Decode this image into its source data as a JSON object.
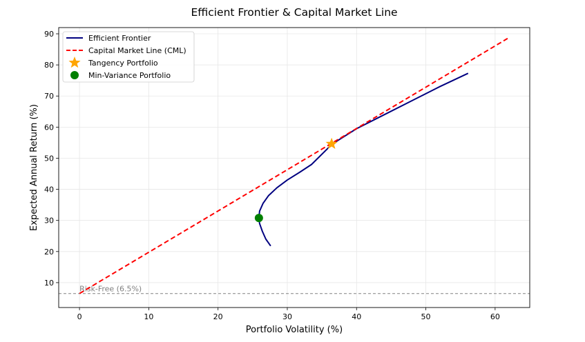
{
  "chart_data": {
    "type": "line",
    "title": "Efficient Frontier & Capital Market Line",
    "xlabel": "Portfolio Volatility (%)",
    "ylabel": "Expected Annual Return (%)",
    "xlim": [
      -3,
      65
    ],
    "ylim": [
      2,
      92
    ],
    "xticks": [
      0,
      10,
      20,
      30,
      40,
      50,
      60
    ],
    "yticks": [
      10,
      20,
      30,
      40,
      50,
      60,
      70,
      80,
      90
    ],
    "grid": true,
    "legend_position": "top-left",
    "series": [
      {
        "name": "Efficient Frontier",
        "kind": "line",
        "color": "#000080",
        "dash": "solid",
        "x": [
          27.6,
          26.9,
          26.4,
          26.0,
          25.9,
          26.0,
          26.5,
          27.3,
          28.5,
          30.0,
          31.8,
          33.5,
          36.5,
          40.0,
          44.0,
          48.0,
          52.0,
          56.1
        ],
        "y": [
          21.8,
          24.0,
          26.5,
          29.0,
          30.8,
          33.0,
          35.5,
          38.0,
          40.5,
          43.0,
          45.5,
          48.0,
          54.6,
          59.5,
          64.0,
          68.5,
          73.0,
          77.3
        ]
      },
      {
        "name": "Capital Market Line (CML)",
        "kind": "line",
        "color": "#ff0000",
        "dash": "dashed",
        "x": [
          0,
          61.8
        ],
        "y": [
          6.5,
          88.5
        ]
      },
      {
        "name": "Tangency Portfolio",
        "kind": "marker",
        "marker": "star",
        "color": "#ffa500",
        "x": [
          36.4
        ],
        "y": [
          54.6
        ]
      },
      {
        "name": "Min-Variance Portfolio",
        "kind": "marker",
        "marker": "circle",
        "color": "#008000",
        "x": [
          25.9
        ],
        "y": [
          30.8
        ]
      }
    ],
    "reference_lines": [
      {
        "orientation": "horizontal",
        "y": 6.5,
        "label": "Risk-Free (6.5%)",
        "color": "#808080",
        "dash": "dashed"
      }
    ]
  }
}
